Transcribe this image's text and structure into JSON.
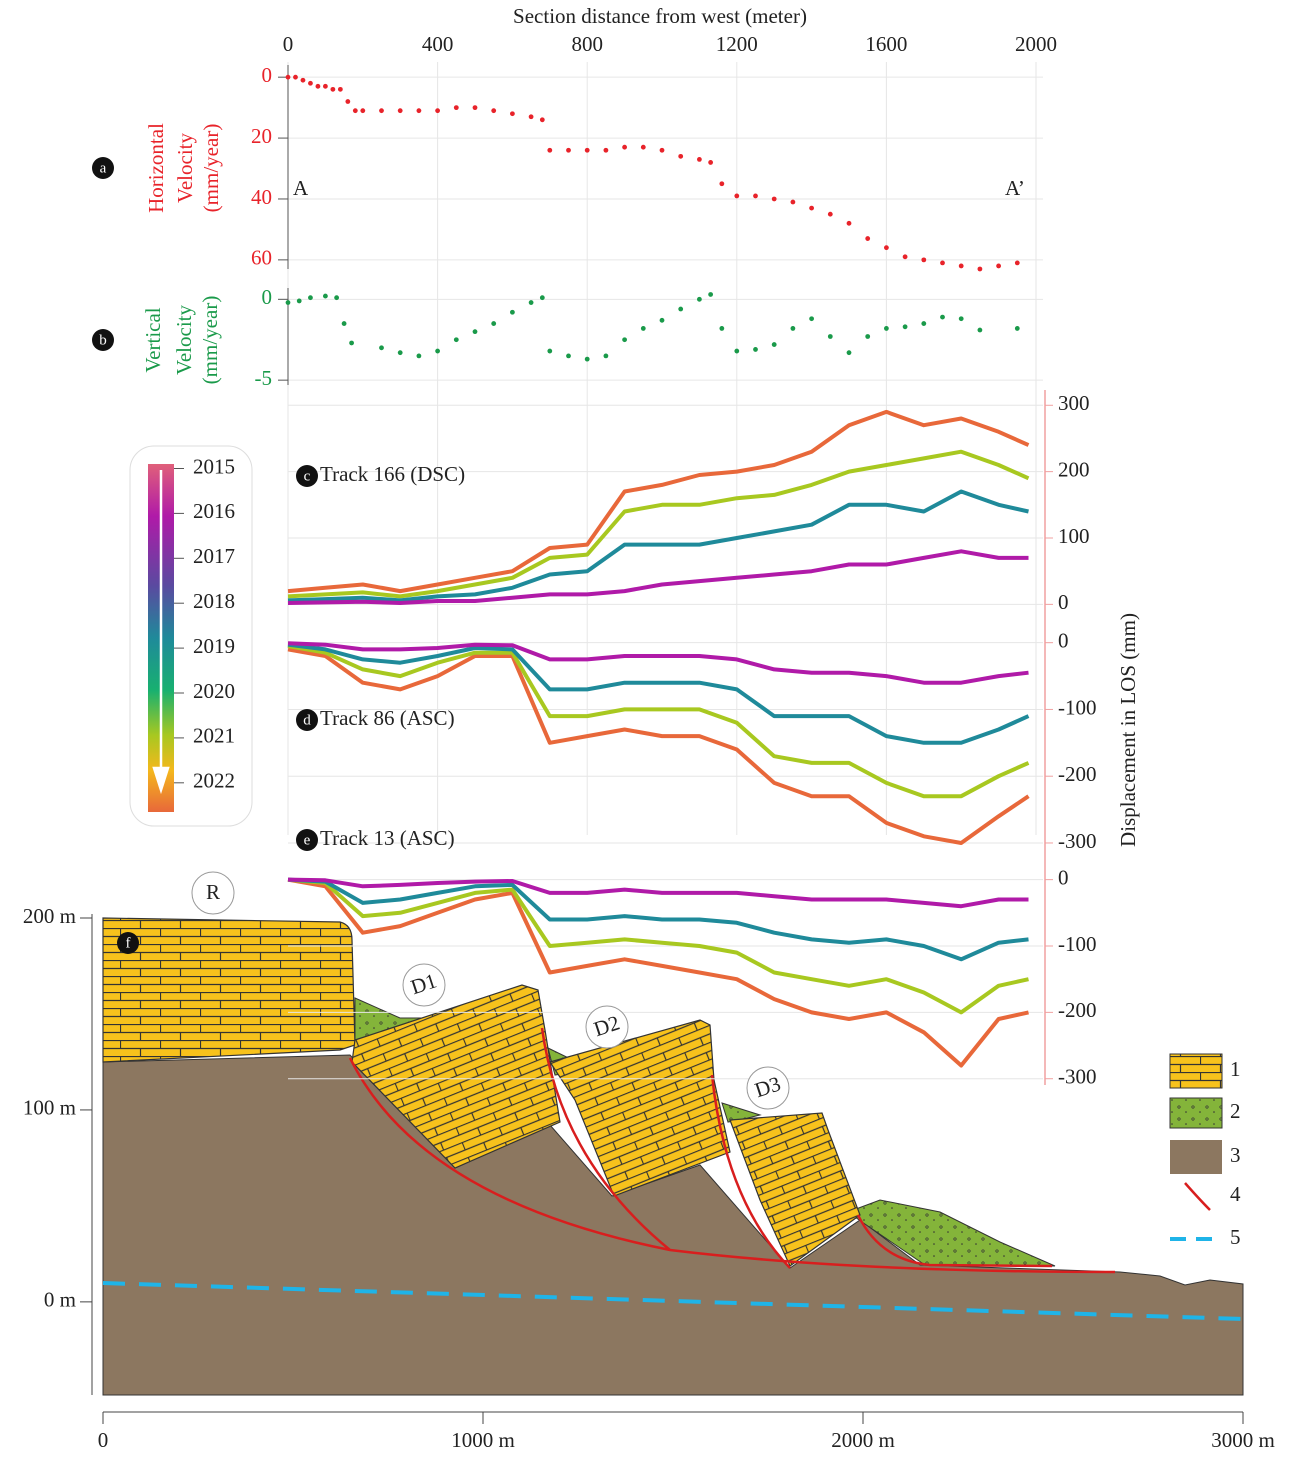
{
  "chart_data": [
    {
      "type": "scatter",
      "panel": "a",
      "xlabel": "Section distance from west (meter)",
      "xlim": [
        0,
        2000
      ],
      "xticks": [
        0,
        400,
        800,
        1200,
        1600,
        2000
      ],
      "ylabel": [
        "Horizontal",
        "Velocity",
        "(mm/year)"
      ],
      "color": "#e8232a",
      "ylim": [
        63,
        -4
      ],
      "yticks": [
        0,
        20,
        40,
        60
      ],
      "grid": true,
      "annotations": [
        "A",
        "A’"
      ],
      "x": [
        0,
        20,
        40,
        60,
        80,
        100,
        120,
        140,
        160,
        180,
        200,
        250,
        300,
        350,
        400,
        450,
        500,
        550,
        600,
        650,
        680,
        700,
        750,
        800,
        850,
        900,
        950,
        1000,
        1050,
        1100,
        1130,
        1160,
        1200,
        1250,
        1300,
        1350,
        1400,
        1450,
        1500,
        1550,
        1600,
        1650,
        1700,
        1750,
        1800,
        1850,
        1900,
        1950
      ],
      "values": [
        0,
        0,
        1,
        2,
        3,
        3,
        4,
        4,
        8,
        11,
        11,
        11,
        11,
        11,
        11,
        10,
        10,
        11,
        12,
        13,
        14,
        24,
        24,
        24,
        24,
        23,
        23,
        24,
        26,
        27,
        28,
        35,
        39,
        39,
        40,
        41,
        43,
        45,
        48,
        53,
        56,
        59,
        60,
        61,
        62,
        63,
        62,
        61
      ]
    },
    {
      "type": "scatter",
      "panel": "b",
      "ylabel": [
        "Vertical",
        "Velocity",
        "(mm/year)"
      ],
      "color": "#1a9a4a",
      "ylim": [
        -5.3,
        0.7
      ],
      "yticks": [
        0,
        -5
      ],
      "grid": true,
      "x": [
        0,
        30,
        60,
        100,
        130,
        150,
        170,
        250,
        300,
        350,
        400,
        450,
        500,
        550,
        600,
        650,
        680,
        700,
        750,
        800,
        850,
        900,
        950,
        1000,
        1050,
        1100,
        1130,
        1160,
        1200,
        1250,
        1300,
        1350,
        1400,
        1450,
        1500,
        1550,
        1600,
        1650,
        1700,
        1750,
        1800,
        1850,
        1950
      ],
      "values": [
        -0.2,
        -0.1,
        0.1,
        0.2,
        0.1,
        -1.5,
        -2.7,
        -3,
        -3.3,
        -3.5,
        -3.2,
        -2.5,
        -2,
        -1.5,
        -0.8,
        -0.2,
        0.1,
        -3.2,
        -3.5,
        -3.7,
        -3.5,
        -2.5,
        -1.8,
        -1.3,
        -0.6,
        0,
        0.3,
        -1.8,
        -3.2,
        -3.1,
        -2.8,
        -1.8,
        -1.2,
        -2.3,
        -3.3,
        -2.3,
        -1.8,
        -1.7,
        -1.5,
        -1.1,
        -1.2,
        -1.9,
        -1.8
      ]
    },
    {
      "type": "line",
      "panel": "c",
      "label": "Track 166 (DSC)",
      "ylabel": "Displacement in LOS (mm)",
      "ylim": [
        -10,
        320
      ],
      "yticks": [
        0,
        100,
        200,
        300
      ],
      "grid": true,
      "x": [
        0,
        100,
        200,
        300,
        400,
        500,
        600,
        700,
        800,
        900,
        1000,
        1100,
        1200,
        1300,
        1400,
        1500,
        1600,
        1700,
        1800,
        1900,
        1980
      ],
      "series": [
        {
          "color": "#e8683a",
          "values": [
            20,
            25,
            30,
            20,
            30,
            40,
            50,
            85,
            90,
            170,
            180,
            195,
            200,
            210,
            230,
            270,
            290,
            270,
            280,
            260,
            240
          ]
        },
        {
          "color": "#a8c820",
          "values": [
            12,
            15,
            18,
            12,
            20,
            30,
            40,
            70,
            75,
            140,
            150,
            150,
            160,
            165,
            180,
            200,
            210,
            220,
            230,
            210,
            190
          ]
        },
        {
          "color": "#1f8a9a",
          "values": [
            6,
            8,
            10,
            6,
            12,
            15,
            25,
            45,
            50,
            90,
            90,
            90,
            100,
            110,
            120,
            150,
            150,
            140,
            170,
            150,
            140
          ]
        },
        {
          "color": "#b01aa8",
          "values": [
            2,
            3,
            4,
            2,
            5,
            5,
            10,
            15,
            15,
            20,
            30,
            35,
            40,
            45,
            50,
            60,
            60,
            70,
            80,
            70,
            70
          ]
        }
      ]
    },
    {
      "type": "line",
      "panel": "d",
      "label": "Track 86 (ASC)",
      "ylim": [
        -330,
        10
      ],
      "yticks": [
        0,
        -100,
        -200,
        -300
      ],
      "grid": true,
      "x": [
        0,
        100,
        200,
        300,
        400,
        500,
        600,
        700,
        800,
        900,
        1000,
        1100,
        1200,
        1300,
        1400,
        1500,
        1600,
        1700,
        1800,
        1900,
        1980
      ],
      "series": [
        {
          "color": "#e8683a",
          "values": [
            -10,
            -20,
            -60,
            -70,
            -50,
            -20,
            -20,
            -150,
            -140,
            -130,
            -140,
            -140,
            -160,
            -210,
            -230,
            -230,
            -270,
            -290,
            -300,
            -260,
            -230
          ]
        },
        {
          "color": "#a8c820",
          "values": [
            -5,
            -15,
            -40,
            -50,
            -30,
            -15,
            -15,
            -110,
            -110,
            -100,
            -100,
            -100,
            -120,
            -170,
            -180,
            -180,
            -210,
            -230,
            -230,
            -200,
            -180
          ]
        },
        {
          "color": "#1f8a9a",
          "values": [
            -3,
            -10,
            -25,
            -30,
            -20,
            -8,
            -10,
            -70,
            -70,
            -60,
            -60,
            -60,
            -70,
            -110,
            -110,
            -110,
            -140,
            -150,
            -150,
            -130,
            -110
          ]
        },
        {
          "color": "#b01aa8",
          "values": [
            -1,
            -3,
            -10,
            -10,
            -8,
            -3,
            -4,
            -25,
            -25,
            -20,
            -20,
            -20,
            -25,
            -40,
            -45,
            -45,
            -50,
            -60,
            -60,
            -50,
            -45
          ]
        }
      ]
    },
    {
      "type": "line",
      "panel": "e",
      "label": "Track 13 (ASC)",
      "ylim": [
        -320,
        10
      ],
      "yticks": [
        0,
        -100,
        -200,
        -300
      ],
      "grid": true,
      "x": [
        0,
        100,
        200,
        300,
        400,
        500,
        600,
        700,
        800,
        900,
        1000,
        1100,
        1200,
        1300,
        1400,
        1500,
        1600,
        1700,
        1800,
        1900,
        1980
      ],
      "series": [
        {
          "color": "#e8683a",
          "values": [
            0,
            -10,
            -80,
            -70,
            -50,
            -30,
            -20,
            -140,
            -130,
            -120,
            -130,
            -140,
            -150,
            -180,
            -200,
            -210,
            -200,
            -230,
            -280,
            -210,
            -200
          ]
        },
        {
          "color": "#a8c820",
          "values": [
            0,
            -5,
            -55,
            -50,
            -35,
            -20,
            -15,
            -100,
            -95,
            -90,
            -95,
            -100,
            -110,
            -140,
            -150,
            -160,
            -150,
            -170,
            -200,
            -160,
            -150
          ]
        },
        {
          "color": "#1f8a9a",
          "values": [
            0,
            -3,
            -35,
            -30,
            -20,
            -10,
            -8,
            -60,
            -60,
            -55,
            -60,
            -60,
            -65,
            -80,
            -90,
            -95,
            -90,
            -100,
            -120,
            -95,
            -90
          ]
        },
        {
          "color": "#b01aa8",
          "values": [
            0,
            -1,
            -10,
            -8,
            -5,
            -3,
            -2,
            -20,
            -20,
            -15,
            -20,
            -20,
            -20,
            -25,
            -30,
            -30,
            -30,
            -35,
            -40,
            -30,
            -30
          ]
        }
      ]
    }
  ],
  "colorbar": {
    "lim": [
      2014.9,
      2022.65
    ],
    "ticks": [
      2015,
      2016,
      2017,
      2018,
      2019,
      2020,
      2021,
      2022
    ]
  },
  "cross_section": {
    "panel": "f",
    "xlim": [
      0,
      3000
    ],
    "xticks": [
      0,
      {
        "value": 1000,
        "label": "1000 m"
      },
      {
        "value": 2000,
        "label": "2000 m"
      },
      {
        "value": 3000,
        "label": "3000 m"
      }
    ],
    "ylim": [
      -48,
      200
    ],
    "yticks": [
      {
        "value": 0,
        "label": "0 m"
      },
      {
        "value": 100,
        "label": "100 m"
      },
      {
        "value": 200,
        "label": "200 m"
      }
    ],
    "units": [
      "R",
      "D1",
      "D2",
      "D3"
    ],
    "legend": [
      "1",
      "2",
      "3",
      "4",
      "5"
    ]
  }
}
